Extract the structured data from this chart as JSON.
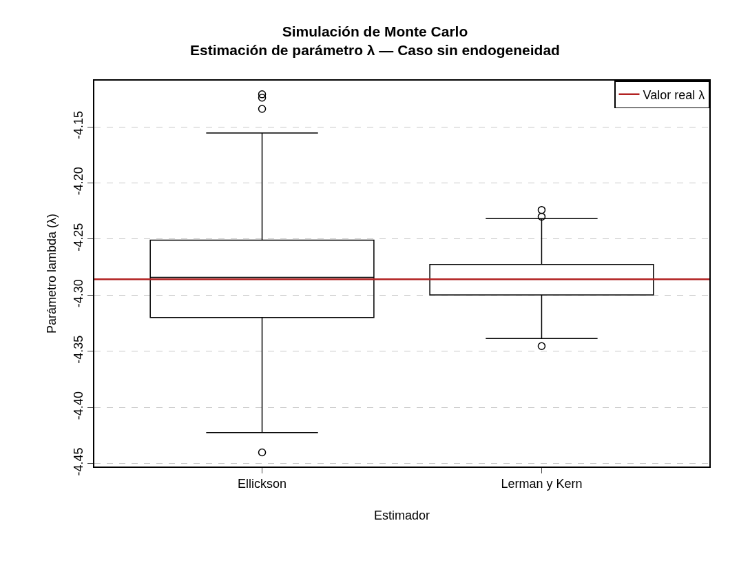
{
  "chart_data": {
    "type": "box",
    "title": "Simulación de Monte Carlo\nEstimación de parámetro λ — Caso sin endogeneidad",
    "xlabel": "Estimador",
    "ylabel": "Parámetro lambda (λ)",
    "categories": [
      "Ellickson",
      "Lerman y Kern"
    ],
    "boxes": [
      {
        "low": -4.4224,
        "q1": -4.3199,
        "median": -4.284,
        "q3": -4.2509,
        "high": -4.1554,
        "outliers": [
          -4.121,
          -4.124,
          -4.134,
          -4.44
        ]
      },
      {
        "low": -4.3385,
        "q1": -4.2998,
        "median": -4.2858,
        "q3": -4.2725,
        "high": -4.2318,
        "outliers": [
          -4.224,
          -4.23,
          -4.3453
        ]
      }
    ],
    "color": "#000000",
    "ylim": [
      -4.4526,
      -4.1088
    ],
    "yticks": [
      -4.15,
      {
        "value": -4.2,
        "label": "-4.20"
      },
      -4.25,
      {
        "value": -4.3,
        "label": "-4.30"
      },
      -4.35,
      {
        "value": -4.4,
        "label": "-4.40"
      },
      -4.45
    ],
    "ref_lines": [
      {
        "axis": "y",
        "value": -4.2858,
        "label": "Valor real λ",
        "color": "#b22222"
      }
    ],
    "grid": "y",
    "legend": "top right",
    "marker": "circle"
  }
}
